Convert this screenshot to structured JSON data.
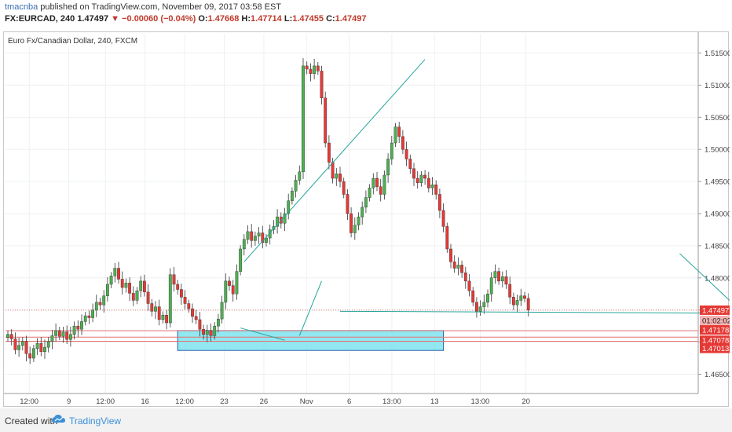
{
  "header": {
    "user": "tmacnba",
    "published": "published on TradingView.com, November 09, 2017 03:58 EST",
    "symbol": "FX:EURCAD, 240",
    "last": "1.47497",
    "change": "−0.00060 (−0.04%)",
    "open_label": "O:",
    "open": "1.47668",
    "high_label": "H:",
    "high": "1.47714",
    "low_label": "L:",
    "low": "1.47455",
    "close_label": "C:",
    "close": "1.47497"
  },
  "legend": {
    "title": "Euro Fx/Canadian Dollar, 240, FXCM"
  },
  "footer": {
    "created_with": "Created with",
    "brand": "TradingView"
  },
  "colors": {
    "up": "#4caf50",
    "down": "#e53935",
    "line": "#26a69a",
    "zone": "#7fe3ef",
    "zone_border": "#2a5fa8",
    "hline": "#e57373"
  },
  "chart_data": {
    "type": "candlestick",
    "title": "Euro Fx/Canadian Dollar, 240, FXCM",
    "ylim": [
      1.462,
      1.518
    ],
    "y_ticks": [
      "1.46500",
      "1.47000",
      "1.47500",
      "1.48000",
      "1.48500",
      "1.49000",
      "1.49500",
      "1.50000",
      "1.50500",
      "1.51000",
      "1.51500"
    ],
    "x_ticks": [
      "12:00",
      "9",
      "12:00",
      "16",
      "12:00",
      "23",
      "26",
      "Nov",
      "6",
      "13:00",
      "13",
      "13:00",
      "20"
    ],
    "price_labels": [
      {
        "text": "1.47497",
        "value": 1.47497,
        "color": "#e53935"
      },
      {
        "text": "01:02:02",
        "value": 1.4731,
        "color": "#ffffff"
      },
      {
        "text": "1.47178",
        "value": 1.47178,
        "color": "#e53935"
      },
      {
        "text": "1.47078",
        "value": 1.47078,
        "color": "#e53935"
      },
      {
        "text": "1.47013",
        "value": 1.47013,
        "color": "#e53935"
      }
    ],
    "horizontal_levels": [
      1.47178,
      1.47078,
      1.47013
    ],
    "zone": {
      "x_start": 46,
      "x_end": 118,
      "y_top": 1.4718,
      "y_bottom": 1.4687
    },
    "closes": [
      1.4712,
      1.4705,
      1.4688,
      1.4695,
      1.4701,
      1.4682,
      1.4675,
      1.469,
      1.4698,
      1.4685,
      1.4692,
      1.4701,
      1.471,
      1.4718,
      1.4709,
      1.4716,
      1.4704,
      1.4712,
      1.4725,
      1.472,
      1.4732,
      1.4741,
      1.4738,
      1.475,
      1.4762,
      1.4758,
      1.4772,
      1.479,
      1.4803,
      1.4815,
      1.4798,
      1.4785,
      1.4792,
      1.4776,
      1.4765,
      1.478,
      1.4795,
      1.4778,
      1.476,
      1.4748,
      1.4755,
      1.4735,
      1.4742,
      1.473,
      1.4805,
      1.479,
      1.4782,
      1.477,
      1.476,
      1.4752,
      1.474,
      1.4735,
      1.472,
      1.4712,
      1.4718,
      1.471,
      1.4725,
      1.4736,
      1.4762,
      1.4795,
      1.4788,
      1.4775,
      1.481,
      1.4845,
      1.486,
      1.4872,
      1.4858,
      1.4865,
      1.487,
      1.4855,
      1.4862,
      1.4875,
      1.488,
      1.4895,
      1.4885,
      1.49,
      1.492,
      1.4935,
      1.4952,
      1.4965,
      1.513,
      1.5125,
      1.5118,
      1.513,
      1.5122,
      1.508,
      1.501,
      1.498,
      1.4955,
      1.4962,
      1.495,
      1.493,
      1.49,
      1.487,
      1.4882,
      1.4895,
      1.491,
      1.4925,
      1.494,
      1.4955,
      1.4942,
      1.493,
      1.496,
      1.4985,
      1.501,
      1.5035,
      1.502,
      1.5,
      1.4985,
      1.497,
      1.4955,
      1.4948,
      1.496,
      1.4955,
      1.494,
      1.4945,
      1.493,
      1.4905,
      1.488,
      1.4845,
      1.4825,
      1.4815,
      1.482,
      1.4808,
      1.4795,
      1.478,
      1.4762,
      1.4748,
      1.4755,
      1.4762,
      1.4775,
      1.48,
      1.481,
      1.4795,
      1.4802,
      1.479,
      1.477,
      1.4758,
      1.4765,
      1.4772,
      1.4768,
      1.475
    ],
    "trend_lines": [
      {
        "x1": 63,
        "y1": 1.4722,
        "x2": 75,
        "y2": 1.4703
      },
      {
        "x1": 64,
        "y1": 1.4825,
        "x2": 113,
        "y2": 1.514
      },
      {
        "x1": 90,
        "y1": 1.4748,
        "x2": 200,
        "y2": 1.4745
      },
      {
        "x1": 79,
        "y1": 1.471,
        "x2": 85,
        "y2": 1.4795
      },
      {
        "x1": 182,
        "y1": 1.4838,
        "x2": 199,
        "y2": 1.4746
      }
    ]
  }
}
